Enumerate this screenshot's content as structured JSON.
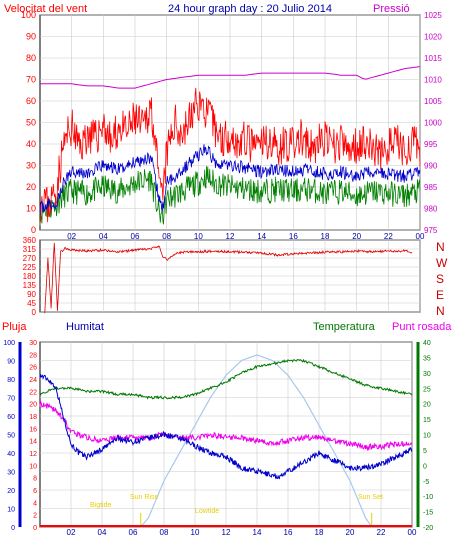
{
  "colors": {
    "wind": "#ff0000",
    "gust": "#ff0000",
    "avg_wind": "#0000cc",
    "wind_green": "#008000",
    "pressure": "#cc00cc",
    "direction": "#dd0000",
    "rain": "#ff0000",
    "humidity": "#0000cc",
    "temperature": "#007700",
    "dewpoint": "#ee00ee",
    "solar": "#a8c8ee",
    "text_right_blue": "#0000aa",
    "sun_labels": "#e8d000",
    "grid": "#cccccc",
    "border": "#000000"
  },
  "header": {
    "wind_label": "Velocitat del vent",
    "title": "24 hour graph day : 20 Julio 2014",
    "pressure_label": "Pressió"
  },
  "panel2": {
    "compass": [
      "N",
      "W",
      "S",
      "E",
      "N"
    ]
  },
  "panel3": {
    "rain_label": "Pluja",
    "humidity_label": "Humitat",
    "temp_label": "Temperatura",
    "dew_label": "Punt rosada",
    "annotations": [
      "Sun Rise",
      "Sun Set",
      "Bigtide",
      "Lowtide"
    ]
  },
  "chart_data": [
    {
      "type": "line",
      "x_ticks": [
        "02",
        "04",
        "06",
        "08",
        "10",
        "12",
        "14",
        "16",
        "18",
        "20",
        "22",
        "00"
      ],
      "y_left": {
        "min": 0,
        "max": 100,
        "ticks": [
          0,
          10,
          20,
          30,
          40,
          50,
          60,
          70,
          80,
          90,
          100
        ]
      },
      "y_right": {
        "min": 975,
        "max": 1025,
        "ticks": [
          975,
          980,
          985,
          990,
          995,
          1000,
          1005,
          1010,
          1015,
          1020,
          1025
        ]
      },
      "series": [
        {
          "name": "Velocitat del vent",
          "key": "gust",
          "x": [
            0,
            0.25,
            0.5,
            0.75,
            1,
            1.5,
            2,
            2.5,
            3,
            3.5,
            4,
            4.5,
            5,
            5.5,
            6,
            6.5,
            7,
            7.25,
            7.5,
            7.75,
            8,
            8.5,
            9,
            9.5,
            10,
            10.5,
            11,
            11.5,
            12,
            12.5,
            13,
            13.5,
            14,
            14.5,
            15,
            15.5,
            16,
            16.5,
            17,
            17.5,
            18,
            18.5,
            19,
            19.5,
            20,
            20.5,
            21,
            21.5,
            22,
            22.5,
            23,
            23.5,
            24
          ],
          "y": [
            12,
            18,
            10,
            15,
            18,
            40,
            48,
            38,
            45,
            42,
            50,
            40,
            48,
            45,
            52,
            47,
            58,
            45,
            20,
            15,
            35,
            50,
            45,
            52,
            60,
            55,
            48,
            42,
            45,
            40,
            42,
            38,
            40,
            42,
            38,
            41,
            39,
            43,
            37,
            40,
            42,
            38,
            41,
            36,
            40,
            42,
            38,
            35,
            39,
            41,
            37,
            40,
            38
          ]
        },
        {
          "name": "",
          "key": "avg_wind",
          "x": [
            0,
            0.5,
            1,
            1.5,
            2,
            3,
            4,
            5,
            6,
            7,
            7.5,
            7.75,
            8,
            9,
            10,
            10.5,
            11,
            12,
            13,
            14,
            15,
            16,
            17,
            18,
            19,
            20,
            21,
            22,
            23,
            24
          ],
          "y": [
            10,
            12,
            11,
            22,
            28,
            26,
            30,
            28,
            32,
            34,
            15,
            10,
            22,
            28,
            35,
            38,
            32,
            30,
            29,
            27,
            28,
            27,
            28,
            26,
            27,
            25,
            27,
            26,
            25,
            27
          ]
        },
        {
          "name": "",
          "key": "wind_green",
          "x": [
            0,
            0.5,
            1,
            1.5,
            2,
            3,
            4,
            5,
            6,
            7,
            7.5,
            7.75,
            8,
            9,
            10,
            10.5,
            11,
            12,
            13,
            14,
            15,
            16,
            17,
            18,
            19,
            20,
            21,
            22,
            23,
            24
          ],
          "y": [
            8,
            10,
            12,
            16,
            18,
            17,
            20,
            18,
            22,
            24,
            8,
            6,
            14,
            18,
            22,
            25,
            22,
            20,
            19,
            18,
            19,
            18,
            19,
            17,
            18,
            16,
            18,
            17,
            16,
            18
          ]
        },
        {
          "name": "Pressió",
          "key": "pressure",
          "axis": "right",
          "x": [
            0,
            1,
            2,
            3,
            4,
            5,
            6,
            7,
            8,
            9,
            10,
            11,
            12,
            13,
            14,
            15,
            16,
            17,
            18,
            19,
            20,
            20.5,
            21,
            22,
            23,
            24
          ],
          "y": [
            1009,
            1009,
            1009,
            1008.5,
            1008.5,
            1008,
            1008,
            1009,
            1010,
            1010.5,
            1011,
            1011,
            1011,
            1011,
            1011.5,
            1011.5,
            1011.5,
            1011.5,
            1011.5,
            1011,
            1011,
            1010,
            1010.5,
            1011.5,
            1012.5,
            1013
          ]
        }
      ]
    },
    {
      "type": "line",
      "y_ticks": [
        0,
        45,
        90,
        135,
        180,
        225,
        270,
        315,
        360
      ],
      "series": [
        {
          "name": "",
          "key": "direction",
          "x": [
            0.3,
            0.5,
            0.7,
            0.9,
            1.1,
            1.3,
            1.6,
            2,
            3,
            4,
            5,
            6,
            7,
            7.5,
            7.75,
            8,
            8.5,
            9,
            10,
            11,
            12,
            13,
            14,
            15,
            16,
            17,
            18,
            19,
            20,
            21,
            22,
            23,
            23.5
          ],
          "y": [
            0,
            270,
            20,
            350,
            10,
            300,
            320,
            310,
            305,
            310,
            300,
            310,
            315,
            330,
            280,
            260,
            290,
            300,
            300,
            305,
            300,
            300,
            295,
            285,
            290,
            295,
            300,
            300,
            305,
            300,
            305,
            305,
            300
          ]
        }
      ]
    },
    {
      "type": "line",
      "y_humidity": {
        "min": 0,
        "max": 100,
        "ticks": [
          0,
          10,
          20,
          30,
          40,
          50,
          60,
          70,
          80,
          90,
          100
        ]
      },
      "y_rain": {
        "min": 0,
        "max": 30,
        "ticks": [
          0,
          2,
          4,
          6,
          8,
          10,
          12,
          14,
          16,
          18,
          20,
          22,
          24,
          26,
          28,
          30
        ]
      },
      "y_temp": {
        "min": -20,
        "max": 40,
        "ticks": [
          -20,
          -15,
          -10,
          -5,
          0,
          5,
          10,
          15,
          20,
          25,
          30,
          35,
          40
        ]
      },
      "series": [
        {
          "name": "Humitat",
          "key": "humidity",
          "x": [
            0,
            0.5,
            1,
            1.5,
            2,
            2.5,
            3,
            4,
            5,
            6,
            7,
            8,
            9,
            10,
            11,
            12,
            13,
            14,
            15,
            15.5,
            16,
            17,
            18,
            19,
            20,
            21,
            22,
            23,
            24
          ],
          "y": [
            82,
            80,
            76,
            60,
            45,
            40,
            38,
            42,
            48,
            46,
            48,
            50,
            48,
            44,
            40,
            38,
            32,
            30,
            28,
            27,
            30,
            35,
            40,
            36,
            32,
            32,
            34,
            38,
            42
          ]
        },
        {
          "name": "Temperatura",
          "key": "temperature",
          "x": [
            0,
            0.5,
            1,
            2,
            3,
            4,
            5,
            6,
            7,
            8,
            9,
            10,
            11,
            12,
            13,
            14,
            15,
            16,
            17,
            18,
            19,
            20,
            21,
            22,
            23,
            24
          ],
          "y": [
            23,
            24,
            25,
            25,
            24,
            24,
            23,
            23,
            22,
            22,
            22,
            23,
            25,
            27,
            30,
            32,
            33,
            34,
            34,
            32,
            30,
            28,
            26,
            25,
            24,
            23
          ]
        },
        {
          "name": "Punt rosada",
          "key": "dewpoint",
          "x": [
            0,
            0.5,
            1,
            1.5,
            2,
            2.5,
            3,
            4,
            5,
            6,
            7,
            8,
            9,
            10,
            11,
            12,
            13,
            14,
            15,
            16,
            17,
            18,
            19,
            20,
            21,
            22,
            23,
            24
          ],
          "y": [
            20,
            19,
            18,
            15,
            11,
            10,
            9,
            8,
            9,
            9,
            9,
            10,
            9,
            9,
            10,
            9,
            9,
            8,
            7,
            8,
            9,
            9,
            8,
            7,
            6,
            6,
            7,
            7
          ]
        },
        {
          "name": "",
          "key": "solar",
          "x": [
            6.5,
            7,
            8,
            9,
            10,
            11,
            12,
            13,
            14,
            15,
            16,
            17,
            18,
            19,
            20,
            21,
            21.4
          ],
          "y": [
            0,
            5,
            25,
            40,
            55,
            70,
            82,
            90,
            93,
            90,
            82,
            70,
            55,
            40,
            25,
            5,
            0
          ]
        }
      ]
    }
  ]
}
